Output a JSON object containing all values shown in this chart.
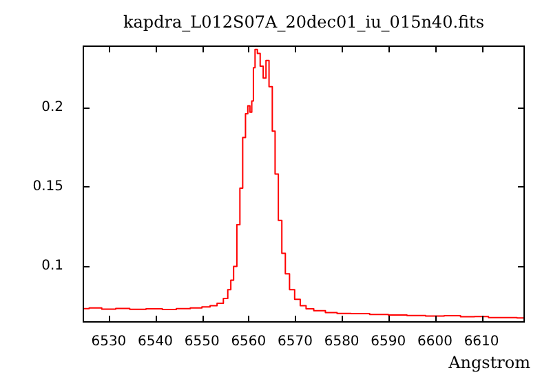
{
  "chart_data": {
    "type": "step",
    "title": "kapdra_L012S07A_20dec01_iu_015n40.fits",
    "xlabel": "Angstrom",
    "x": [
      6524.6,
      6527,
      6530,
      6533,
      6536,
      6540,
      6543,
      6546,
      6549,
      6551,
      6552.5,
      6554,
      6555.2,
      6555.9,
      6556.5,
      6557.1,
      6557.9,
      6558.4,
      6559.1,
      6559.6,
      6560.1,
      6560.5,
      6560.9,
      6561.2,
      6561.6,
      6562.2,
      6562.8,
      6563.5,
      6564.0,
      6564.8,
      6565.4,
      6566.0,
      6566.8,
      6567.5,
      6568.3,
      6569.3,
      6570.5,
      6571.7,
      6573,
      6575,
      6578,
      6580,
      6584,
      6588,
      6592,
      6596,
      6600,
      6604,
      6607,
      6610,
      6613,
      6616,
      6619.2
    ],
    "series": [
      {
        "color": "#ff0000",
        "values": [
          0.0731,
          0.0735,
          0.0728,
          0.0732,
          0.0727,
          0.073,
          0.0726,
          0.0731,
          0.0735,
          0.0742,
          0.075,
          0.0765,
          0.0795,
          0.085,
          0.091,
          0.0997,
          0.126,
          0.149,
          0.181,
          0.196,
          0.201,
          0.197,
          0.204,
          0.225,
          0.2365,
          0.234,
          0.226,
          0.2185,
          0.2295,
          0.213,
          0.185,
          0.158,
          0.1287,
          0.108,
          0.095,
          0.085,
          0.079,
          0.075,
          0.073,
          0.0718,
          0.0706,
          0.0701,
          0.0699,
          0.0694,
          0.0691,
          0.0688,
          0.0684,
          0.0686,
          0.068,
          0.0681,
          0.0675,
          0.0674,
          0.0672
        ]
      }
    ],
    "xlim": [
      6524.4,
      6619.3
    ],
    "ylim": [
      0.0643,
      0.239
    ],
    "xticks": [
      6530,
      6540,
      6550,
      6560,
      6570,
      6580,
      6590,
      6600,
      6610
    ],
    "yticks": [
      0.1,
      0.15,
      0.2
    ]
  }
}
